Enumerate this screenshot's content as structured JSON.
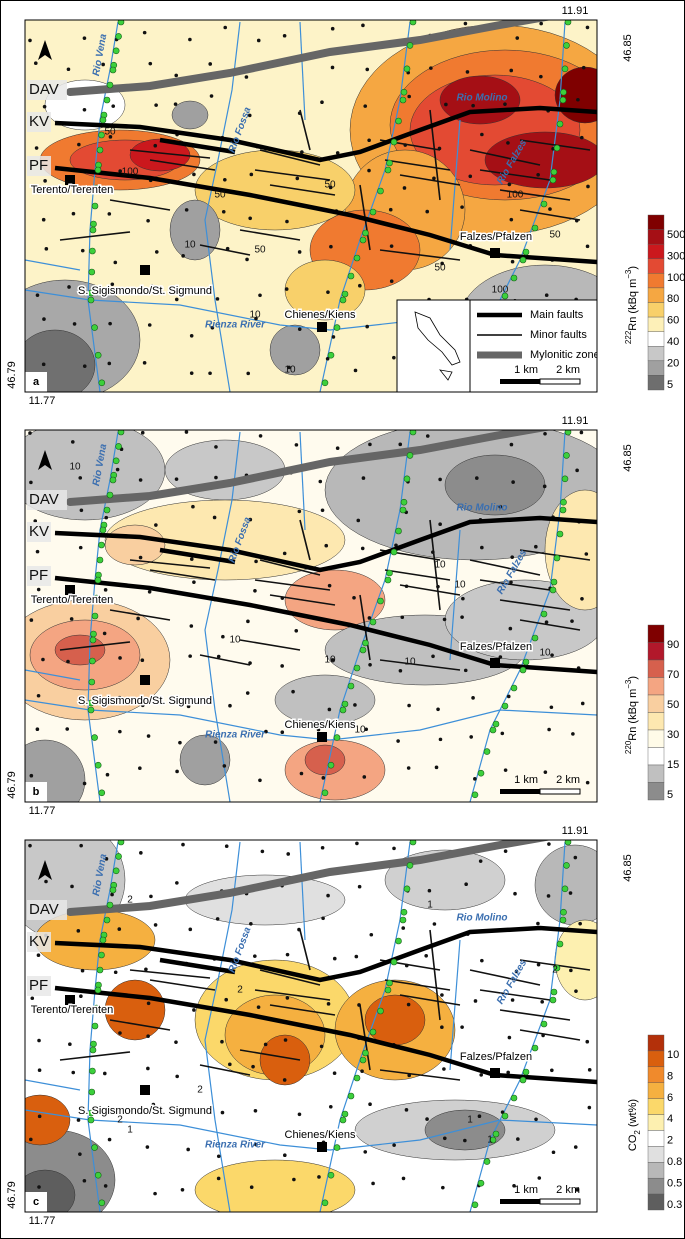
{
  "figure": {
    "panels": [
      {
        "letter": "a",
        "coords": {
          "top_lon": "11.91",
          "top_lat": "46.85",
          "bottom_lat": "46.79",
          "bottom_lon": "11.77"
        },
        "zones": [
          "DAV",
          "KV",
          "PF"
        ],
        "places": [
          "Terento/Terenten",
          "S. Sigismondo/St. Sigmund",
          "Chienes/Kiens",
          "Falzes/Pfalzen"
        ],
        "rivers": [
          "Rio Vena",
          "Rio Fossa",
          "Rio Molino",
          "Rio Falzes",
          "Rienza River"
        ],
        "contour_labels": [
          "50",
          "100",
          "50",
          "50",
          "10",
          "50",
          "100",
          "50",
          "10",
          "10",
          "100",
          "50"
        ],
        "scale": [
          "1 km",
          "2 km"
        ],
        "legend": [
          "Main faults",
          "Minor faults",
          "Mylonitic zone"
        ],
        "colorbar": {
          "title_parts": [
            {
              "text": "222",
              "style": "sup"
            },
            {
              "text": "Rn (kBq m",
              "style": "normal"
            },
            {
              "text": "−3",
              "style": "sup"
            },
            {
              "text": ")",
              "style": "normal"
            }
          ],
          "ticks": [
            500,
            300,
            100,
            80,
            60,
            40,
            20,
            5
          ],
          "colors": [
            "#7f0000",
            "#a50f15",
            "#cb181d",
            "#e34a33",
            "#f07a30",
            "#f5a742",
            "#f8d06a",
            "#fdf0b8",
            "#ffffff",
            "#c8c8c8",
            "#a0a0a0",
            "#6e6e6e"
          ]
        }
      },
      {
        "letter": "b",
        "coords": {
          "top_lon": "11.91",
          "top_lat": "46.85",
          "bottom_lat": "46.79",
          "bottom_lon": "11.77"
        },
        "zones": [
          "DAV",
          "KV",
          "PF"
        ],
        "places": [
          "Terento/Terenten",
          "S. Sigismondo/St. Sigmund",
          "Chienes/Kiens",
          "Falzes/Pfalzen"
        ],
        "rivers": [
          "Rio Vena",
          "Rio Fossa",
          "Rio Molino",
          "Rio Falzes",
          "Rienza River"
        ],
        "contour_labels": [
          "10",
          "10",
          "10",
          "10",
          "10",
          "10",
          "10",
          "10"
        ],
        "scale": [
          "1 km",
          "2 km"
        ],
        "colorbar": {
          "title_parts": [
            {
              "text": "220",
              "style": "sup"
            },
            {
              "text": "Rn (kBq m",
              "style": "normal"
            },
            {
              "text": "−3",
              "style": "sup"
            },
            {
              "text": ")",
              "style": "normal"
            }
          ],
          "ticks": [
            90,
            70,
            50,
            30,
            15,
            5
          ],
          "colors": [
            "#7f0000",
            "#b2182b",
            "#d6604d",
            "#f4a582",
            "#f9cfa0",
            "#fde8b0",
            "#fffbe8",
            "#ffffff",
            "#c0c0c0",
            "#8c8c8c"
          ]
        }
      },
      {
        "letter": "c",
        "coords": {
          "top_lon": "11.91",
          "top_lat": "46.85",
          "bottom_lat": "46.79",
          "bottom_lon": "11.77"
        },
        "zones": [
          "DAV",
          "KV",
          "PF"
        ],
        "places": [
          "Terento/Terenten",
          "S. Sigismondo/St. Sigmund",
          "Chienes/Kiens",
          "Falzes/Pfalzen"
        ],
        "rivers": [
          "Rio Vena",
          "Rio Fossa",
          "Rio Molino",
          "Rio Falzes",
          "Rienza River"
        ],
        "contour_labels": [
          "2",
          "1",
          "2",
          "2",
          "2",
          "1",
          "1",
          "2",
          "1"
        ],
        "scale": [
          "1 km",
          "2 km"
        ],
        "colorbar": {
          "title_parts": [
            {
              "text": "CO",
              "style": "normal"
            },
            {
              "text": "2",
              "style": "sub"
            },
            {
              "text": " (wt%)",
              "style": "normal"
            }
          ],
          "ticks": [
            10,
            8,
            6,
            4,
            2,
            0.8,
            0.5,
            0.3
          ],
          "colors": [
            "#b3300a",
            "#d95f0e",
            "#f08a2c",
            "#f5b040",
            "#fbd86a",
            "#fdf0b0",
            "#ffffff",
            "#e0e0e0",
            "#b8b8b8",
            "#8c8c8c",
            "#5e5e5e"
          ]
        }
      }
    ]
  }
}
